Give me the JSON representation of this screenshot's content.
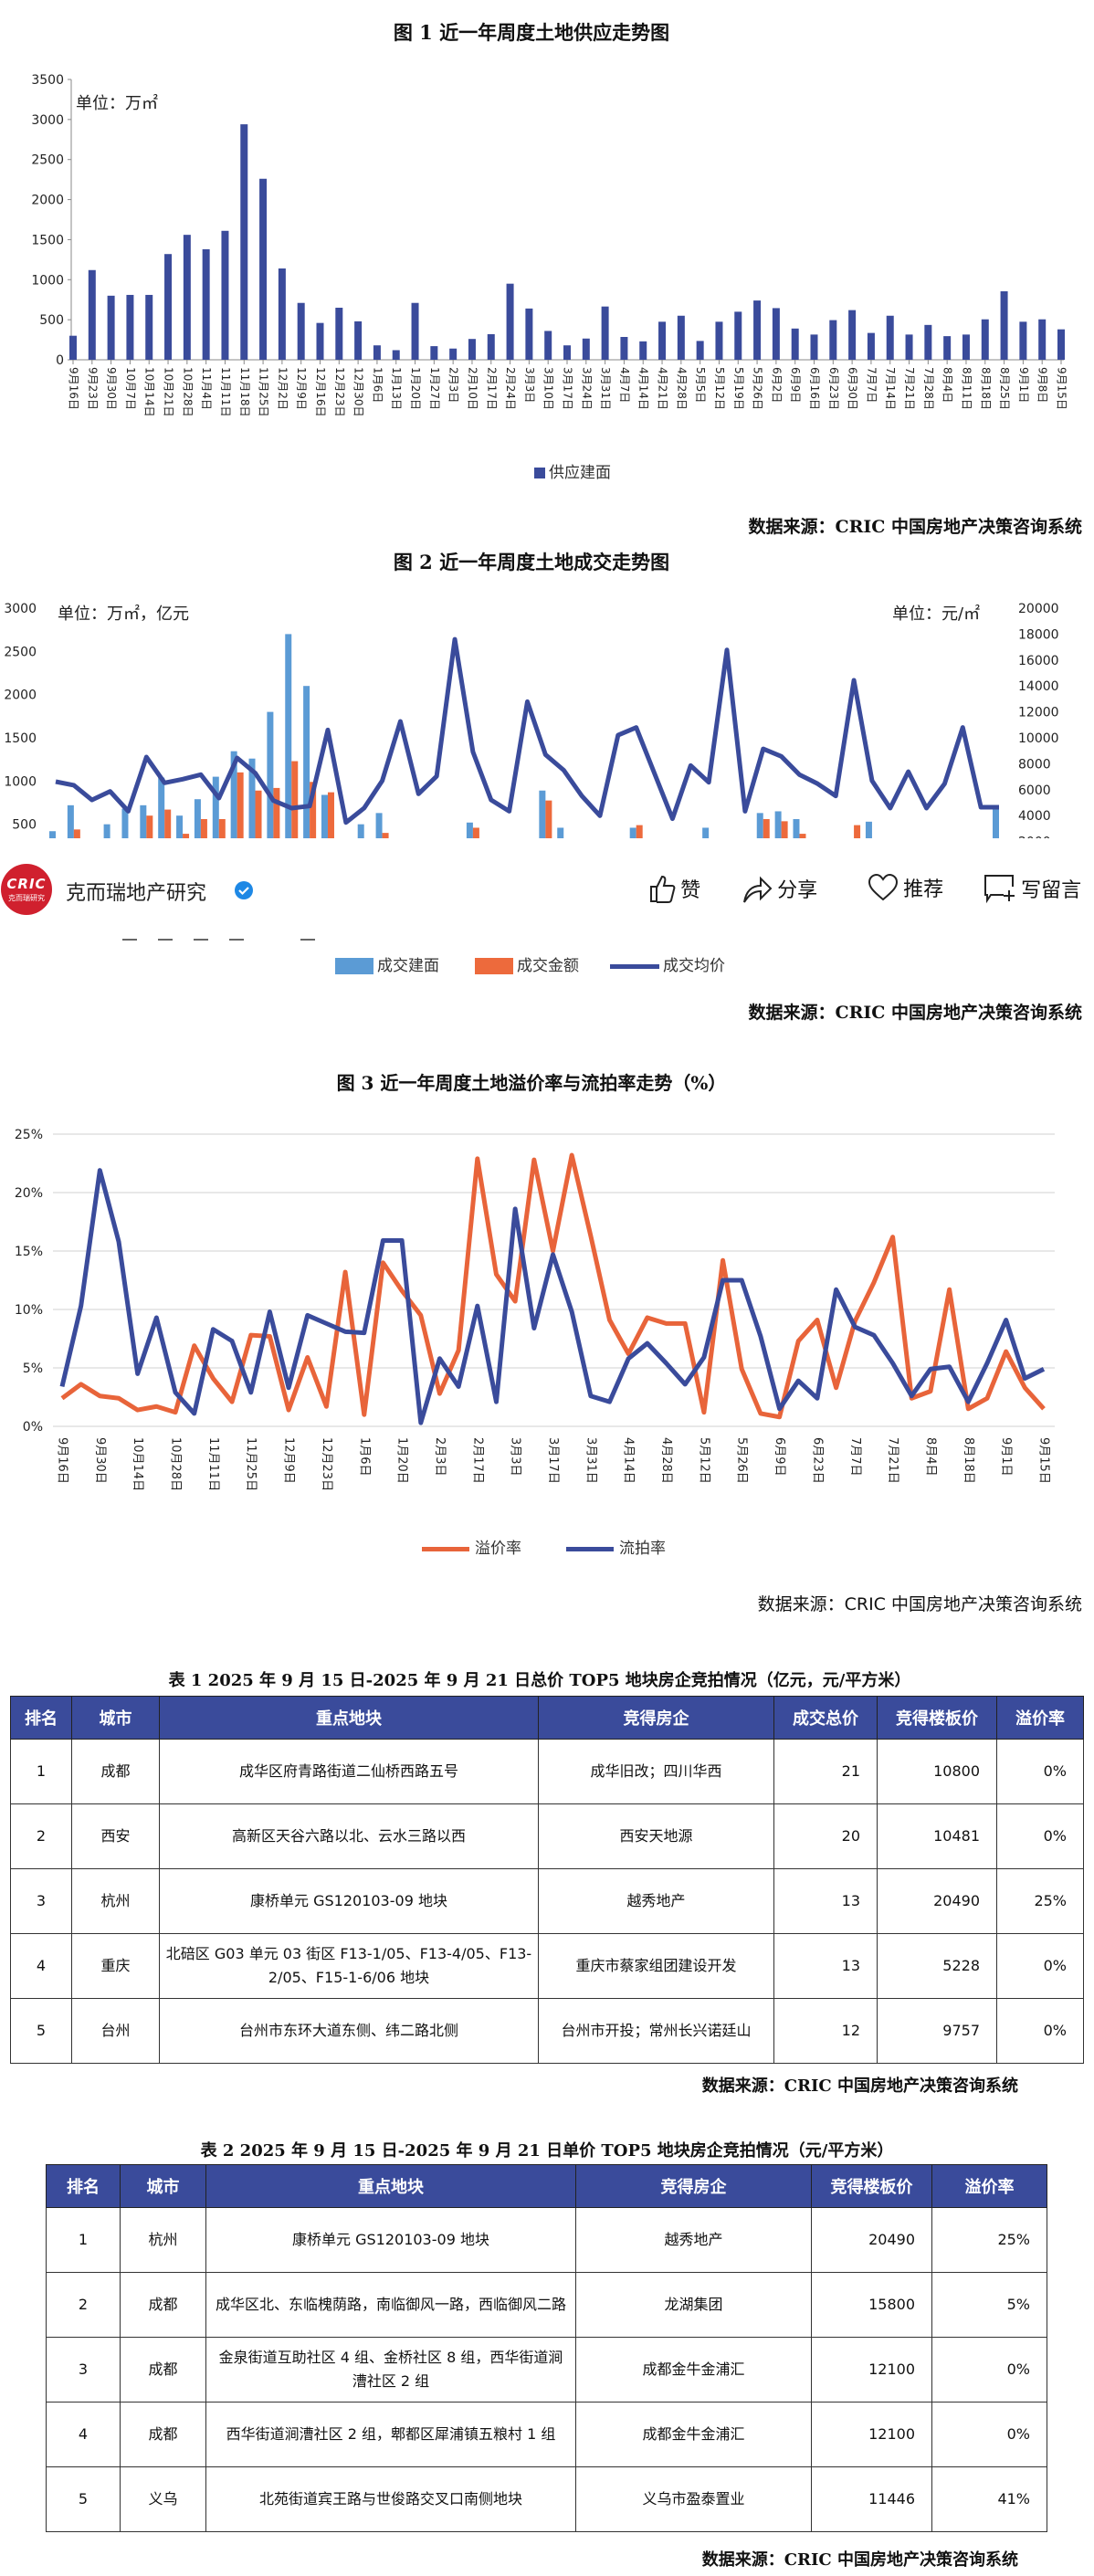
{
  "colors": {
    "supply_bar": "#3a4b9b",
    "deal_area": "#5b9bd5",
    "deal_amount": "#ed6a3c",
    "avg_price": "#3a4b9b",
    "premium": "#e8643a",
    "failure": "#3a4b9b",
    "table_header": "#3a4b9b",
    "logo_red": "#d0202e",
    "verified_blue": "#1e88e5"
  },
  "source_text": "数据来源：CRIC 中国房地产决策咨询系统",
  "app_bar": {
    "account_name": "克而瑞地产研究",
    "logo_text": "CRIC",
    "logo_subtext": "克而瑞研究",
    "verified_icon": "verified-badge-icon",
    "actions": [
      {
        "icon": "thumbs-up-icon",
        "label": "赞"
      },
      {
        "icon": "share-icon",
        "label": "分享"
      },
      {
        "icon": "heart-icon",
        "label": "推荐"
      },
      {
        "icon": "comment-icon",
        "label": "写留言"
      }
    ]
  },
  "chart_data": [
    {
      "type": "bar",
      "title": "图 1   近一年周度土地供应走势图",
      "unit_label": "单位：万㎡",
      "categories": [
        "9月16日",
        "9月23日",
        "9月30日",
        "10月7日",
        "10月14日",
        "10月21日",
        "10月28日",
        "11月4日",
        "11月11日",
        "11月18日",
        "11月25日",
        "12月2日",
        "12月9日",
        "12月16日",
        "12月23日",
        "12月30日",
        "1月6日",
        "1月13日",
        "1月20日",
        "1月27日",
        "2月3日",
        "2月10日",
        "2月17日",
        "2月24日",
        "3月3日",
        "3月10日",
        "3月17日",
        "3月24日",
        "3月31日",
        "4月7日",
        "4月14日",
        "4月21日",
        "4月28日",
        "5月5日",
        "5月12日",
        "5月19日",
        "5月26日",
        "6月2日",
        "6月9日",
        "6月16日",
        "6月23日",
        "6月30日",
        "7月7日",
        "7月14日",
        "7月21日",
        "7月28日",
        "8月4日",
        "8月11日",
        "8月18日",
        "8月25日",
        "9月1日",
        "9月8日",
        "9月15日"
      ],
      "series": [
        {
          "name": "供应建面",
          "values": [
            300,
            1120,
            800,
            810,
            810,
            1320,
            1560,
            1380,
            1610,
            2940,
            2260,
            1140,
            710,
            460,
            650,
            480,
            180,
            120,
            710,
            170,
            140,
            260,
            320,
            950,
            640,
            360,
            180,
            265,
            665,
            285,
            230,
            475,
            550,
            235,
            475,
            600,
            740,
            645,
            390,
            315,
            495,
            620,
            335,
            550,
            315,
            435,
            295,
            315,
            505,
            855,
            475,
            505,
            380
          ]
        }
      ],
      "ylim": [
        0,
        3500
      ],
      "yticks": [
        "0",
        "500",
        "1000",
        "1500",
        "2000",
        "2500",
        "3000",
        "3500"
      ],
      "legend_position": "bottom",
      "grid": false
    },
    {
      "type": "bar+line",
      "title": "图 2   近一年周度土地成交走势图",
      "left_unit_label": "单位：万㎡，亿元",
      "right_unit_label": "单位：元/㎡",
      "series": [
        {
          "name": "成交建面",
          "axis": "left",
          "type": "bar",
          "values": [
            420,
            720,
            null,
            500,
            680,
            720,
            1040,
            600,
            790,
            1050,
            1345,
            1260,
            1800,
            2700,
            2100,
            840,
            null,
            500,
            630,
            null,
            null,
            null,
            null,
            520,
            null,
            null,
            null,
            890,
            460,
            null,
            null,
            null,
            460,
            null,
            null,
            null,
            460,
            null,
            null,
            630,
            650,
            560,
            null,
            null,
            null,
            530,
            null,
            null,
            null,
            null,
            null,
            null,
            690
          ]
        },
        {
          "name": "成交金额",
          "axis": "left",
          "type": "bar",
          "values": [
            null,
            440,
            null,
            null,
            null,
            600,
            670,
            390,
            560,
            560,
            1100,
            890,
            920,
            1230,
            990,
            870,
            null,
            null,
            400,
            null,
            null,
            null,
            null,
            460,
            null,
            null,
            null,
            775,
            null,
            null,
            null,
            null,
            490,
            null,
            null,
            null,
            null,
            null,
            null,
            560,
            535,
            390,
            null,
            null,
            490,
            null,
            null,
            null,
            null,
            null,
            null,
            null,
            null
          ]
        },
        {
          "name": "成交均价",
          "axis": "right",
          "type": "line",
          "values": [
            6620,
            6340,
            5210,
            5870,
            4340,
            8520,
            6530,
            6810,
            7160,
            5350,
            8450,
            7280,
            5160,
            4580,
            4740,
            10610,
            3470,
            4580,
            6690,
            11270,
            5680,
            7040,
            17600,
            8920,
            5210,
            4340,
            12790,
            8700,
            7510,
            5520,
            3990,
            10210,
            10800,
            7280,
            3760,
            7860,
            6570,
            16780,
            4340,
            9150,
            8570,
            7160,
            6460,
            5520,
            14440,
            6690,
            4580,
            7390,
            4580,
            6460,
            10800,
            4650,
            4650
          ]
        }
      ],
      "ylim_left": [
        0,
        3000
      ],
      "yticks_left": [
        "500",
        "1000",
        "1500",
        "2000",
        "2500",
        "3000"
      ],
      "ylim_right": [
        0,
        20000
      ],
      "yticks_right": [
        "2000",
        "4000",
        "6000",
        "8000",
        "10000",
        "12000",
        "14000",
        "16000",
        "18000",
        "20000"
      ],
      "legend_position": "bottom",
      "grid": false
    },
    {
      "type": "line",
      "title": "图 3   近一年周度土地溢价率与流拍率走势（%）",
      "x_labels": [
        "9月16日",
        "9月30日",
        "10月14日",
        "10月28日",
        "11月11日",
        "11月25日",
        "12月9日",
        "12月23日",
        "1月6日",
        "1月20日",
        "2月3日",
        "2月17日",
        "3月3日",
        "3月17日",
        "3月31日",
        "4月14日",
        "4月28日",
        "5月12日",
        "5月26日",
        "6月9日",
        "6月23日",
        "7月7日",
        "7月21日",
        "8月4日",
        "8月18日",
        "9月1日",
        "9月15日"
      ],
      "series": [
        {
          "name": "溢价率",
          "values": [
            2.4,
            3.6,
            2.6,
            2.4,
            1.4,
            1.7,
            1.2,
            6.9,
            4.1,
            2.1,
            7.8,
            7.7,
            1.4,
            5.9,
            1.7,
            13.2,
            1.0,
            14.0,
            11.6,
            9.5,
            2.8,
            6.5,
            22.9,
            13.0,
            10.7,
            22.8,
            15.0,
            23.2,
            16.3,
            9.1,
            6.2,
            9.3,
            8.8,
            8.8,
            1.2,
            14.2,
            4.9,
            1.1,
            0.8,
            7.3,
            9.1,
            3.3,
            9.0,
            12.3,
            16.2,
            2.4,
            3.0,
            11.7,
            1.5,
            2.4,
            6.4,
            3.3,
            1.5
          ]
        },
        {
          "name": "流拍率",
          "values": [
            3.4,
            10.3,
            21.9,
            15.8,
            4.5,
            9.3,
            2.9,
            1.1,
            8.3,
            7.3,
            2.9,
            9.8,
            3.3,
            9.5,
            8.8,
            8.1,
            8.0,
            15.9,
            15.9,
            0.3,
            5.8,
            3.4,
            10.3,
            2.1,
            18.6,
            8.4,
            14.7,
            9.8,
            2.6,
            2.1,
            5.8,
            7.1,
            5.4,
            3.6,
            5.9,
            12.5,
            12.5,
            7.7,
            1.5,
            3.9,
            2.4,
            11.7,
            8.5,
            7.8,
            5.4,
            2.6,
            4.9,
            5.1,
            2.1,
            5.4,
            9.1,
            4.1,
            4.9
          ]
        }
      ],
      "ylim": [
        0,
        25
      ],
      "yticks": [
        "0%",
        "5%",
        "10%",
        "15%",
        "20%",
        "25%"
      ],
      "legend_position": "bottom",
      "grid": true
    }
  ],
  "table1": {
    "title": "表 1   2025 年 9 月 15 日-2025 年 9 月 21 日总价 TOP5 地块房企竞拍情况（亿元，元/平方米）",
    "headers": [
      "排名",
      "城市",
      "重点地块",
      "竞得房企",
      "成交总价",
      "竞得楼板价",
      "溢价率"
    ],
    "rows": [
      [
        "1",
        "成都",
        "成华区府青路街道二仙桥西路五号",
        "成华旧改；四川华西",
        "21",
        "10800",
        "0%"
      ],
      [
        "2",
        "西安",
        "高新区天谷六路以北、云水三路以西",
        "西安天地源",
        "20",
        "10481",
        "0%"
      ],
      [
        "3",
        "杭州",
        "康桥单元 GS120103-09 地块",
        "越秀地产",
        "13",
        "20490",
        "25%"
      ],
      [
        "4",
        "重庆",
        "北碚区 G03 单元 03 街区 F13-1/05、F13-4/05、F13-2/05、F15-1-6/06 地块",
        "重庆市蔡家组团建设开发",
        "13",
        "5228",
        "0%"
      ],
      [
        "5",
        "台州",
        "台州市东环大道东侧、纬二路北侧",
        "台州市开投；常州长兴诺廷山",
        "12",
        "9757",
        "0%"
      ]
    ]
  },
  "table2": {
    "title": "表 2   2025 年 9 月 15 日-2025 年 9 月 21 日单价 TOP5 地块房企竞拍情况（元/平方米）",
    "headers": [
      "排名",
      "城市",
      "重点地块",
      "竞得房企",
      "竞得楼板价",
      "溢价率"
    ],
    "rows": [
      [
        "1",
        "杭州",
        "康桥单元 GS120103-09 地块",
        "越秀地产",
        "20490",
        "25%"
      ],
      [
        "2",
        "成都",
        "成华区北、东临槐荫路，南临御风一路，西临御风二路",
        "龙湖集团",
        "15800",
        "5%"
      ],
      [
        "3",
        "成都",
        "金泉街道互助社区 4 组、金桥社区 8 组，西华街道涧漕社区 2 组",
        "成都金牛金浦汇",
        "12100",
        "0%"
      ],
      [
        "4",
        "成都",
        "西华街道涧漕社区 2 组，郫都区犀浦镇五粮村 1 组",
        "成都金牛金浦汇",
        "12100",
        "0%"
      ],
      [
        "5",
        "义乌",
        "北苑街道宾王路与世俊路交叉口南侧地块",
        "义乌市盈泰置业",
        "11446",
        "41%"
      ]
    ]
  }
}
